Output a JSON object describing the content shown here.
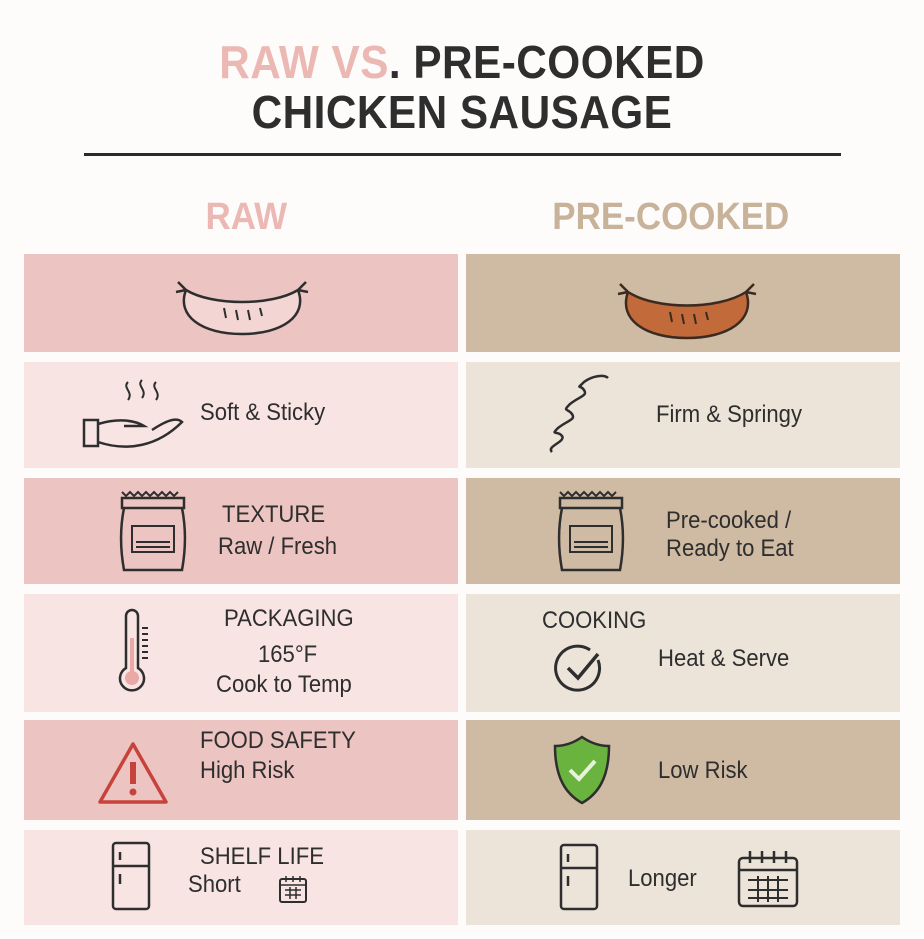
{
  "title": {
    "line1_accent": "RAW VS",
    "line1_rest": ". PRE-COOKED",
    "line2": "CHICKEN SAUSAGE"
  },
  "columns": {
    "raw": "RAW",
    "precooked": "PRE-COOKED"
  },
  "colors": {
    "raw_accent": "#ebb8b3",
    "precooked_accent": "#c8b39a",
    "raw_dark": "#ecc4c1",
    "raw_light": "#f8e5e3",
    "precooked_dark": "#cfbba3",
    "precooked_light": "#ece3d9"
  },
  "rows": [
    {
      "raw": {
        "icon": "raw-sausage-icon"
      },
      "precooked": {
        "icon": "cooked-sausage-icon"
      }
    },
    {
      "raw": {
        "icon": "hand-steam-icon",
        "text": "Soft & Sticky"
      },
      "precooked": {
        "icon": "spring-icon",
        "text": "Firm & Springy"
      }
    },
    {
      "raw": {
        "icon": "package-bag-icon",
        "label": "TEXTURE",
        "text": "Raw / Fresh"
      },
      "precooked": {
        "icon": "package-bag-icon",
        "text_1": "Pre-cooked /",
        "text_2": "Ready to Eat"
      }
    },
    {
      "raw": {
        "icon": "thermometer-icon",
        "label": "PACKAGING",
        "text_1": "165°F",
        "text_2": "Cook to Temp"
      },
      "precooked": {
        "icon": "check-circle-icon",
        "label": "COOKING",
        "text": "Heat & Serve"
      }
    },
    {
      "raw": {
        "icon": "warning-icon",
        "label": "FOOD SAFETY",
        "text": "High Risk"
      },
      "precooked": {
        "icon": "shield-check-icon",
        "text": "Low Risk"
      }
    },
    {
      "raw": {
        "icon": "fridge-icon",
        "label": "SHELF LIFE",
        "text": "Short"
      },
      "precooked": {
        "icon": "fridge-icon",
        "text": "Longer"
      }
    }
  ]
}
